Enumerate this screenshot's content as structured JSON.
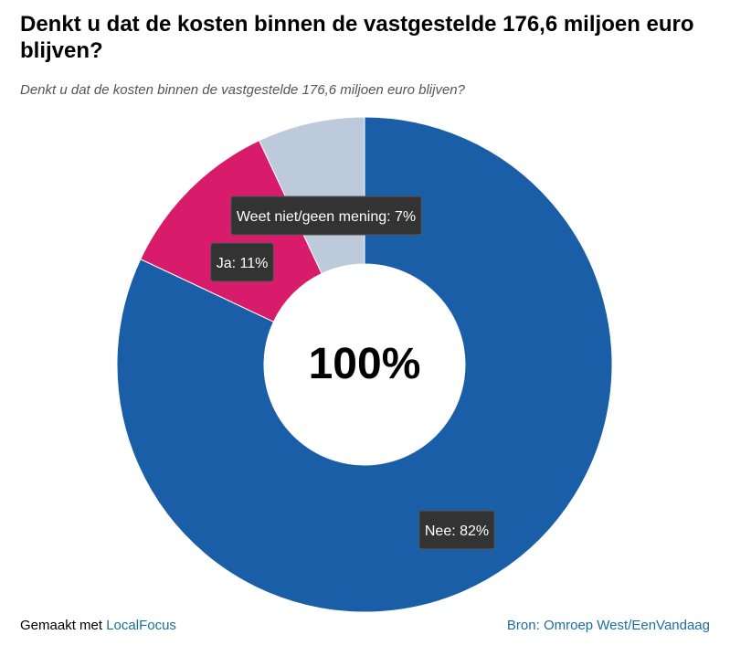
{
  "title": "Denkt u dat de kosten binnen de vastgestelde 176,6 miljoen euro blijven?",
  "subtitle": "Denkt u dat de kosten binnen de vastgestelde 176,6 miljoen euro blijven?",
  "chart_data": {
    "type": "pie",
    "title": "Denkt u dat de kosten binnen de vastgestelde 176,6 miljoen euro blijven?",
    "center_label": "100%",
    "slices": [
      {
        "label": "Nee",
        "value": 82,
        "display": "Nee: 82%",
        "color": "#1b5ea8"
      },
      {
        "label": "Ja",
        "value": 11,
        "display": "Ja: 11%",
        "color": "#d81b6a"
      },
      {
        "label": "Weet niet/geen mening",
        "value": 7,
        "display": "Weet niet/geen mening: 7%",
        "color": "#bccadb"
      }
    ]
  },
  "footer": {
    "made_with": "Gemaakt met",
    "made_with_brand": "LocalFocus",
    "source": "Bron: Omroep West/EenVandaag"
  }
}
